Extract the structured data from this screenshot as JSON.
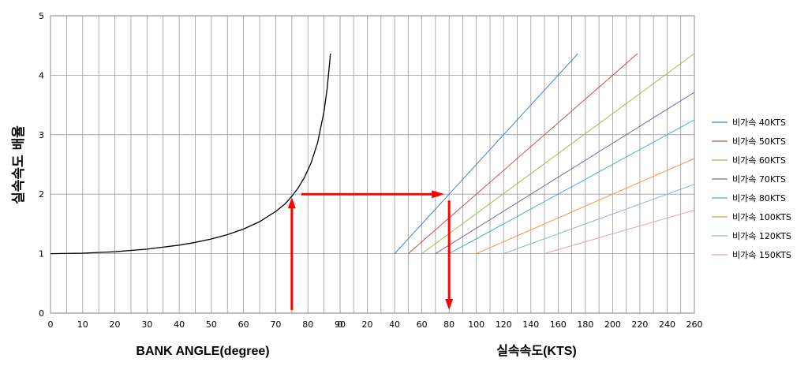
{
  "chart_data": {
    "type": "line",
    "ylabel": "실속속도 배율",
    "ylim": [
      0,
      5
    ],
    "y_ticks": [
      "0",
      "1",
      "2",
      "3",
      "4",
      "5"
    ],
    "grid": true,
    "left_panel": {
      "xlabel": "BANK ANGLE(degree)",
      "xlim": [
        0,
        90
      ],
      "x_ticks": [
        "0",
        "10",
        "20",
        "30",
        "40",
        "50",
        "60",
        "70",
        "80",
        "90"
      ],
      "series": [
        {
          "color": "#000000",
          "x": [
            0,
            10,
            20,
            30,
            40,
            45,
            50,
            55,
            60,
            65,
            70,
            73,
            75,
            77,
            79,
            81,
            83,
            85,
            86,
            87
          ],
          "y": [
            1.0,
            1.008,
            1.032,
            1.075,
            1.143,
            1.189,
            1.247,
            1.32,
            1.414,
            1.538,
            1.71,
            1.842,
            1.964,
            2.108,
            2.289,
            2.528,
            2.865,
            3.387,
            3.786,
            4.365
          ]
        }
      ]
    },
    "right_panel": {
      "xlabel": "실속속도(KTS)",
      "xlim": [
        0,
        260
      ],
      "x_ticks": [
        "0",
        "20",
        "40",
        "60",
        "80",
        "100",
        "120",
        "140",
        "160",
        "180",
        "200",
        "220",
        "240",
        "260"
      ],
      "series": [
        {
          "name": "비가속 40KTS",
          "color": "#4F81BD",
          "x": [
            40,
            174.6
          ],
          "y": [
            1,
            4.365
          ]
        },
        {
          "name": "비가속 50KTS",
          "color": "#C0504D",
          "x": [
            50,
            218.3
          ],
          "y": [
            1,
            4.365
          ]
        },
        {
          "name": "비가속 60KTS",
          "color": "#9BBB59",
          "x": [
            60,
            261.9
          ],
          "y": [
            1,
            4.365
          ]
        },
        {
          "name": "비가속 70KTS",
          "color": "#8064A2",
          "x": [
            70,
            260
          ],
          "y": [
            1,
            3.714
          ]
        },
        {
          "name": "비가속 80KTS",
          "color": "#4BACC6",
          "x": [
            80,
            260
          ],
          "y": [
            1,
            3.25
          ]
        },
        {
          "name": "비가속 100KTS",
          "color": "#F79646",
          "x": [
            100,
            260
          ],
          "y": [
            1,
            2.6
          ]
        },
        {
          "name": "비가속 120KTS",
          "color": "#95B3D7",
          "x": [
            120,
            260
          ],
          "y": [
            1,
            2.167
          ]
        },
        {
          "name": "비가속 150KTS",
          "color": "#E6A29D",
          "x": [
            150,
            260
          ],
          "y": [
            1,
            1.733
          ]
        }
      ]
    },
    "annotations": {
      "arrow_color": "#FF0000",
      "example_bank_angle": 75,
      "example_multiplier": 2,
      "example_stall_speed_kts": 80
    },
    "legend_position": "right"
  }
}
